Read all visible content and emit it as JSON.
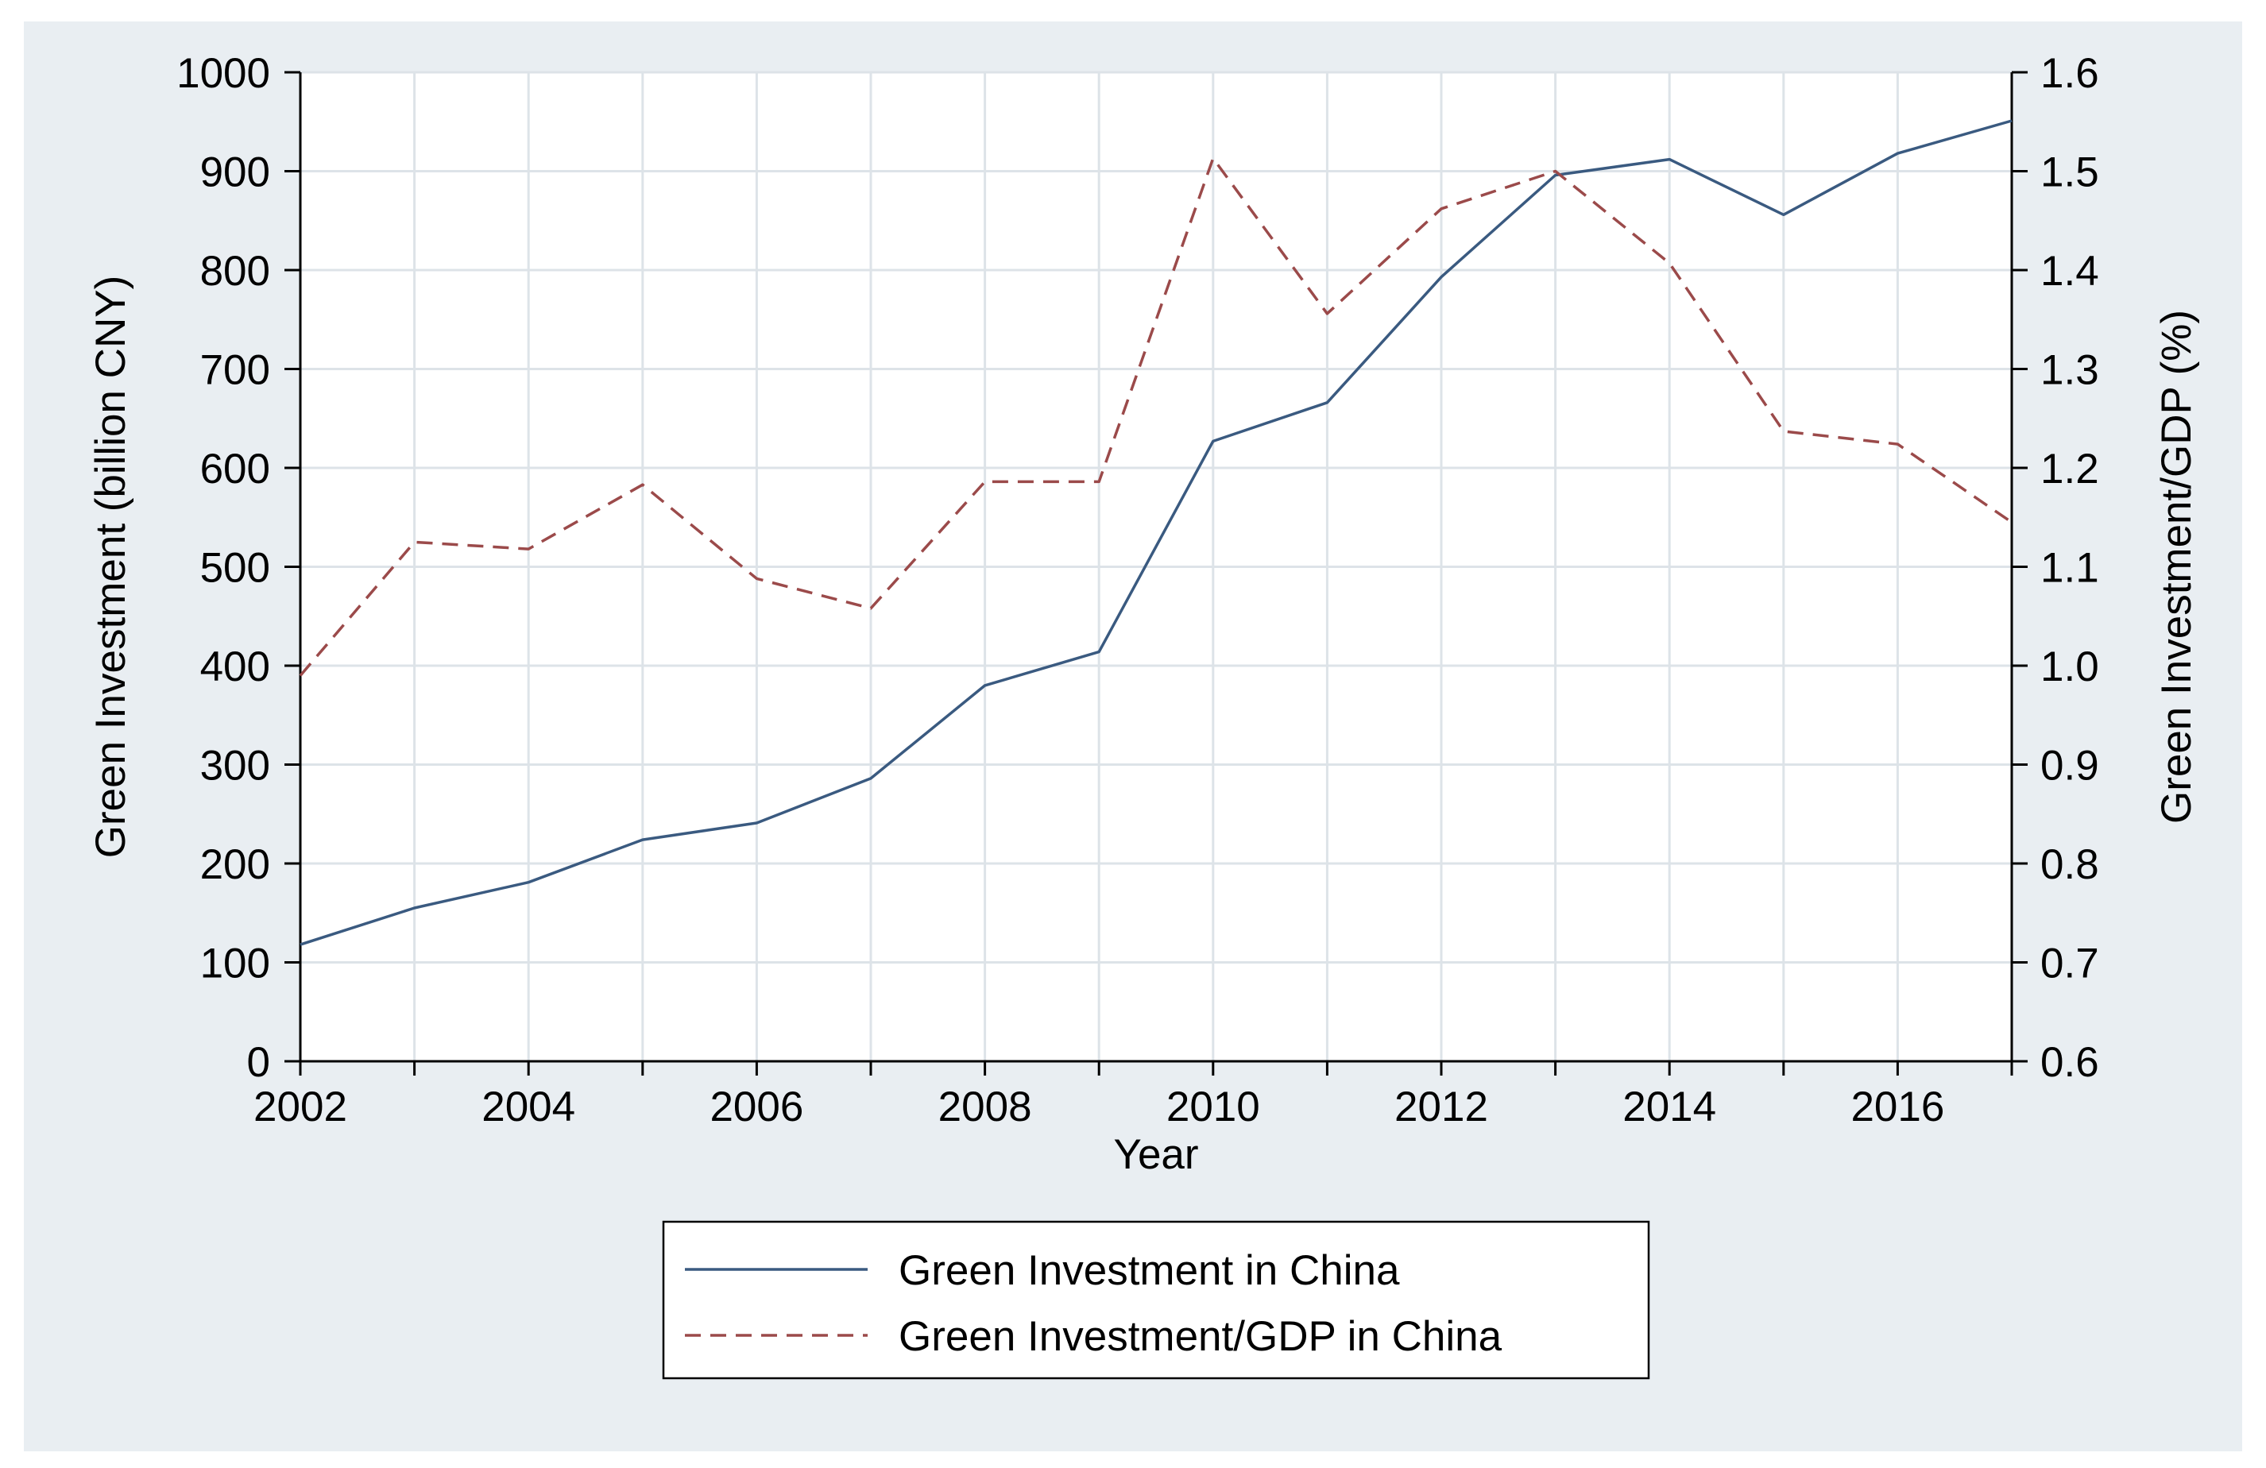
{
  "chart_data": {
    "type": "line",
    "title": "",
    "xlabel": "Year",
    "ylabel_left": "Green Investment (billion CNY)",
    "ylabel_right": "Green Investment/GDP (%)",
    "x": [
      2002,
      2003,
      2004,
      2005,
      2006,
      2007,
      2008,
      2009,
      2010,
      2011,
      2012,
      2013,
      2014,
      2015,
      2016,
      2017
    ],
    "xlim": [
      2002,
      2017
    ],
    "ylim_left": [
      0,
      1000
    ],
    "ylim_right": [
      0.6,
      1.6
    ],
    "x_ticks": [
      "2002",
      "2004",
      "2006",
      "2008",
      "2010",
      "2012",
      "2014",
      "2016"
    ],
    "y_ticks_left": [
      "0",
      "100",
      "200",
      "300",
      "400",
      "500",
      "600",
      "700",
      "800",
      "900",
      "1000"
    ],
    "y_ticks_right": [
      "0.6",
      "0.7",
      "0.8",
      "0.9",
      "1.0",
      "1.1",
      "1.2",
      "1.3",
      "1.4",
      "1.5",
      "1.6"
    ],
    "grid": true,
    "legend_position": "bottom",
    "series": [
      {
        "name": "Green Investment in China",
        "axis": "left",
        "style": "solid",
        "color": "#3a5a80",
        "values": [
          118,
          155,
          181,
          224,
          241,
          286,
          380,
          414,
          627,
          666,
          793,
          896,
          912,
          856,
          918,
          951
        ]
      },
      {
        "name": "Green Investment/GDP in China",
        "axis": "right",
        "style": "dashed",
        "color": "#9b4a4a",
        "values": [
          0.99,
          1.125,
          1.118,
          1.183,
          1.088,
          1.058,
          1.186,
          1.186,
          1.513,
          1.356,
          1.462,
          1.5,
          1.407,
          1.237,
          1.224,
          1.145
        ]
      }
    ]
  }
}
